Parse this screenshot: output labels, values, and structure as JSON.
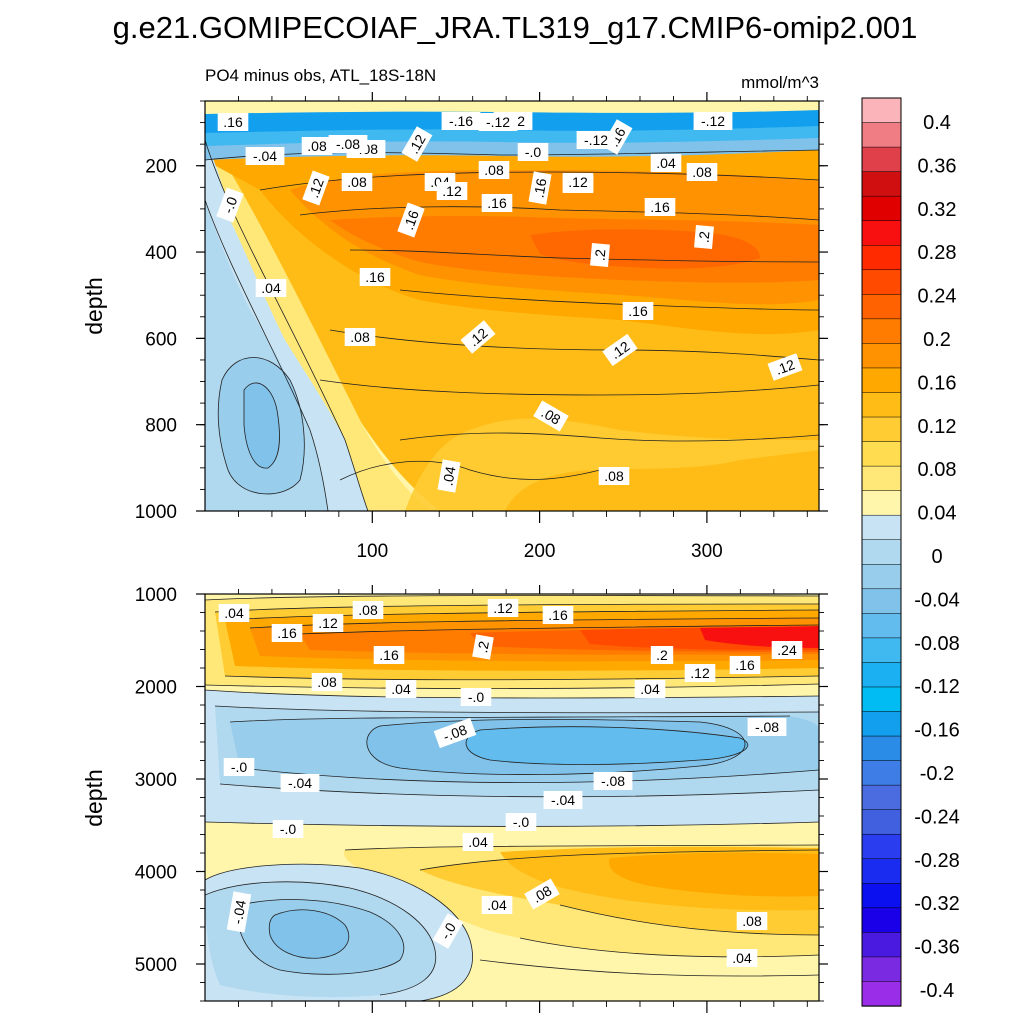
{
  "title": "g.e21.GOMIPECOIAF_JRA.TL319_g17.CMIP6-omip2.001",
  "subtitle_left": "PO4 minus obs, ATL_18S-18N",
  "subtitle_right": "mmol/m^3",
  "chart_data": [
    {
      "type": "heatmap",
      "panel": "upper",
      "ylabel": "depth",
      "xlabel": "",
      "ylim": [
        1000,
        50
      ],
      "xlim": [
        0,
        367
      ],
      "xticks": [
        100,
        200,
        300
      ],
      "yticks": [
        200,
        400,
        600,
        800,
        1000
      ],
      "contour_labels": [
        ".16",
        "-.16",
        "-.12",
        ".12",
        "-.08",
        ".08",
        "-.04",
        "-.0",
        ".04",
        ".16",
        "-.12",
        ".2",
        ".2",
        ".16",
        ".12",
        ".08",
        ".04",
        ".08",
        ".12",
        ".16",
        ".12"
      ]
    },
    {
      "type": "heatmap",
      "panel": "lower",
      "ylabel": "depth",
      "xlabel": "",
      "ylim": [
        5400,
        1000
      ],
      "xlim": [
        0,
        367
      ],
      "xticks": [
        100,
        200,
        300
      ],
      "yticks": [
        1000,
        2000,
        3000,
        4000,
        5000
      ],
      "contour_labels": [
        ".04",
        ".12",
        ".08",
        ".16",
        ".16",
        ".2",
        ".16",
        ".24",
        ".08",
        ".04",
        "-.0",
        ".04",
        "-.08",
        "-.08",
        "-.04",
        "-.08",
        "-.04",
        "-.0",
        ".04",
        ".08",
        ".04",
        "-.04",
        "-.0",
        ".08"
      ]
    },
    {
      "type": "colorbar",
      "units": "mmol/m^3",
      "levels": [
        -0.4,
        -0.36,
        -0.32,
        -0.28,
        -0.24,
        -0.2,
        -0.16,
        -0.12,
        -0.08,
        -0.04,
        0,
        0.04,
        0.08,
        0.12,
        0.16,
        0.2,
        0.24,
        0.28,
        0.32,
        0.36,
        0.4
      ],
      "labels": [
        "0.4",
        "0.36",
        "0.32",
        "0.28",
        "0.24",
        "0.2",
        "0.16",
        "0.12",
        "0.08",
        "0.04",
        "0",
        "-0.04",
        "-0.08",
        "-0.12",
        "-0.16",
        "-0.2",
        "-0.24",
        "-0.28",
        "-0.32",
        "-0.36",
        "-0.4"
      ],
      "colors": [
        "#fbb4b9",
        "#f07c84",
        "#e0404a",
        "#d01010",
        "#e00000",
        "#f81010",
        "#ff2a00",
        "#ff4a00",
        "#ff6200",
        "#ff7c00",
        "#ff9200",
        "#ffa800",
        "#ffbc16",
        "#ffcc33",
        "#ffdc50",
        "#ffe878",
        "#fff6ac",
        "#c8e4f4",
        "#b0d8ef",
        "#98cdec",
        "#80c2ea",
        "#62bced",
        "#40b8f0",
        "#1ab0f2",
        "#00bcf2",
        "#12a0ee",
        "#2a8ce6",
        "#3f7de6",
        "#4a6ce0",
        "#4060e0",
        "#2a3ef0",
        "#1a2cf0",
        "#0a10f0",
        "#1a00e8",
        "#4a1ae0",
        "#7a2ae0",
        "#9a2ee8"
      ]
    }
  ]
}
